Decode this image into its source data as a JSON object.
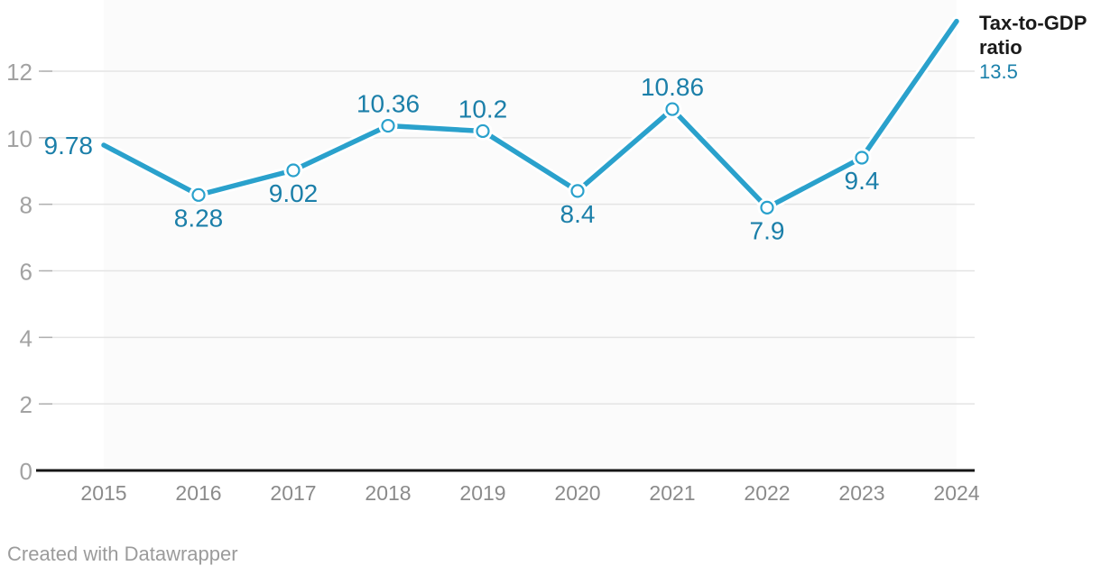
{
  "chart_data": {
    "type": "line",
    "title": "",
    "series_label": "Tax-to-GDP ratio",
    "x": [
      2015,
      2016,
      2017,
      2018,
      2019,
      2020,
      2021,
      2022,
      2023,
      2024
    ],
    "values": [
      9.78,
      8.28,
      9.02,
      10.36,
      10.2,
      8.4,
      10.86,
      7.9,
      9.4,
      13.5
    ],
    "value_labels": [
      "9.78",
      "8.28",
      "9.02",
      "10.36",
      "10.2",
      "8.4",
      "10.86",
      "7.9",
      "9.4",
      "13.5"
    ],
    "value_label_positions": [
      "left",
      "below",
      "below",
      "above",
      "above",
      "below",
      "above",
      "below",
      "below",
      "legend"
    ],
    "end_label": "13.5",
    "ylim": [
      0,
      13.5
    ],
    "yticks": [
      0,
      2,
      4,
      6,
      8,
      10,
      12
    ],
    "grid": true,
    "legend_position": "top-right",
    "colors": {
      "line": "#2aa1cc",
      "marker_fill": "#ffffff",
      "value_label": "#1b7fa9",
      "y_axis_text": "#a2a2a2",
      "x_axis_text": "#8b8b8b",
      "gridline": "#e4e4e4",
      "tick": "#b0b0b0",
      "baseline": "#151515",
      "plot_band": "#fbfbfb",
      "halo": "#ffffff"
    }
  },
  "footer": {
    "text": "Created with Datawrapper"
  }
}
